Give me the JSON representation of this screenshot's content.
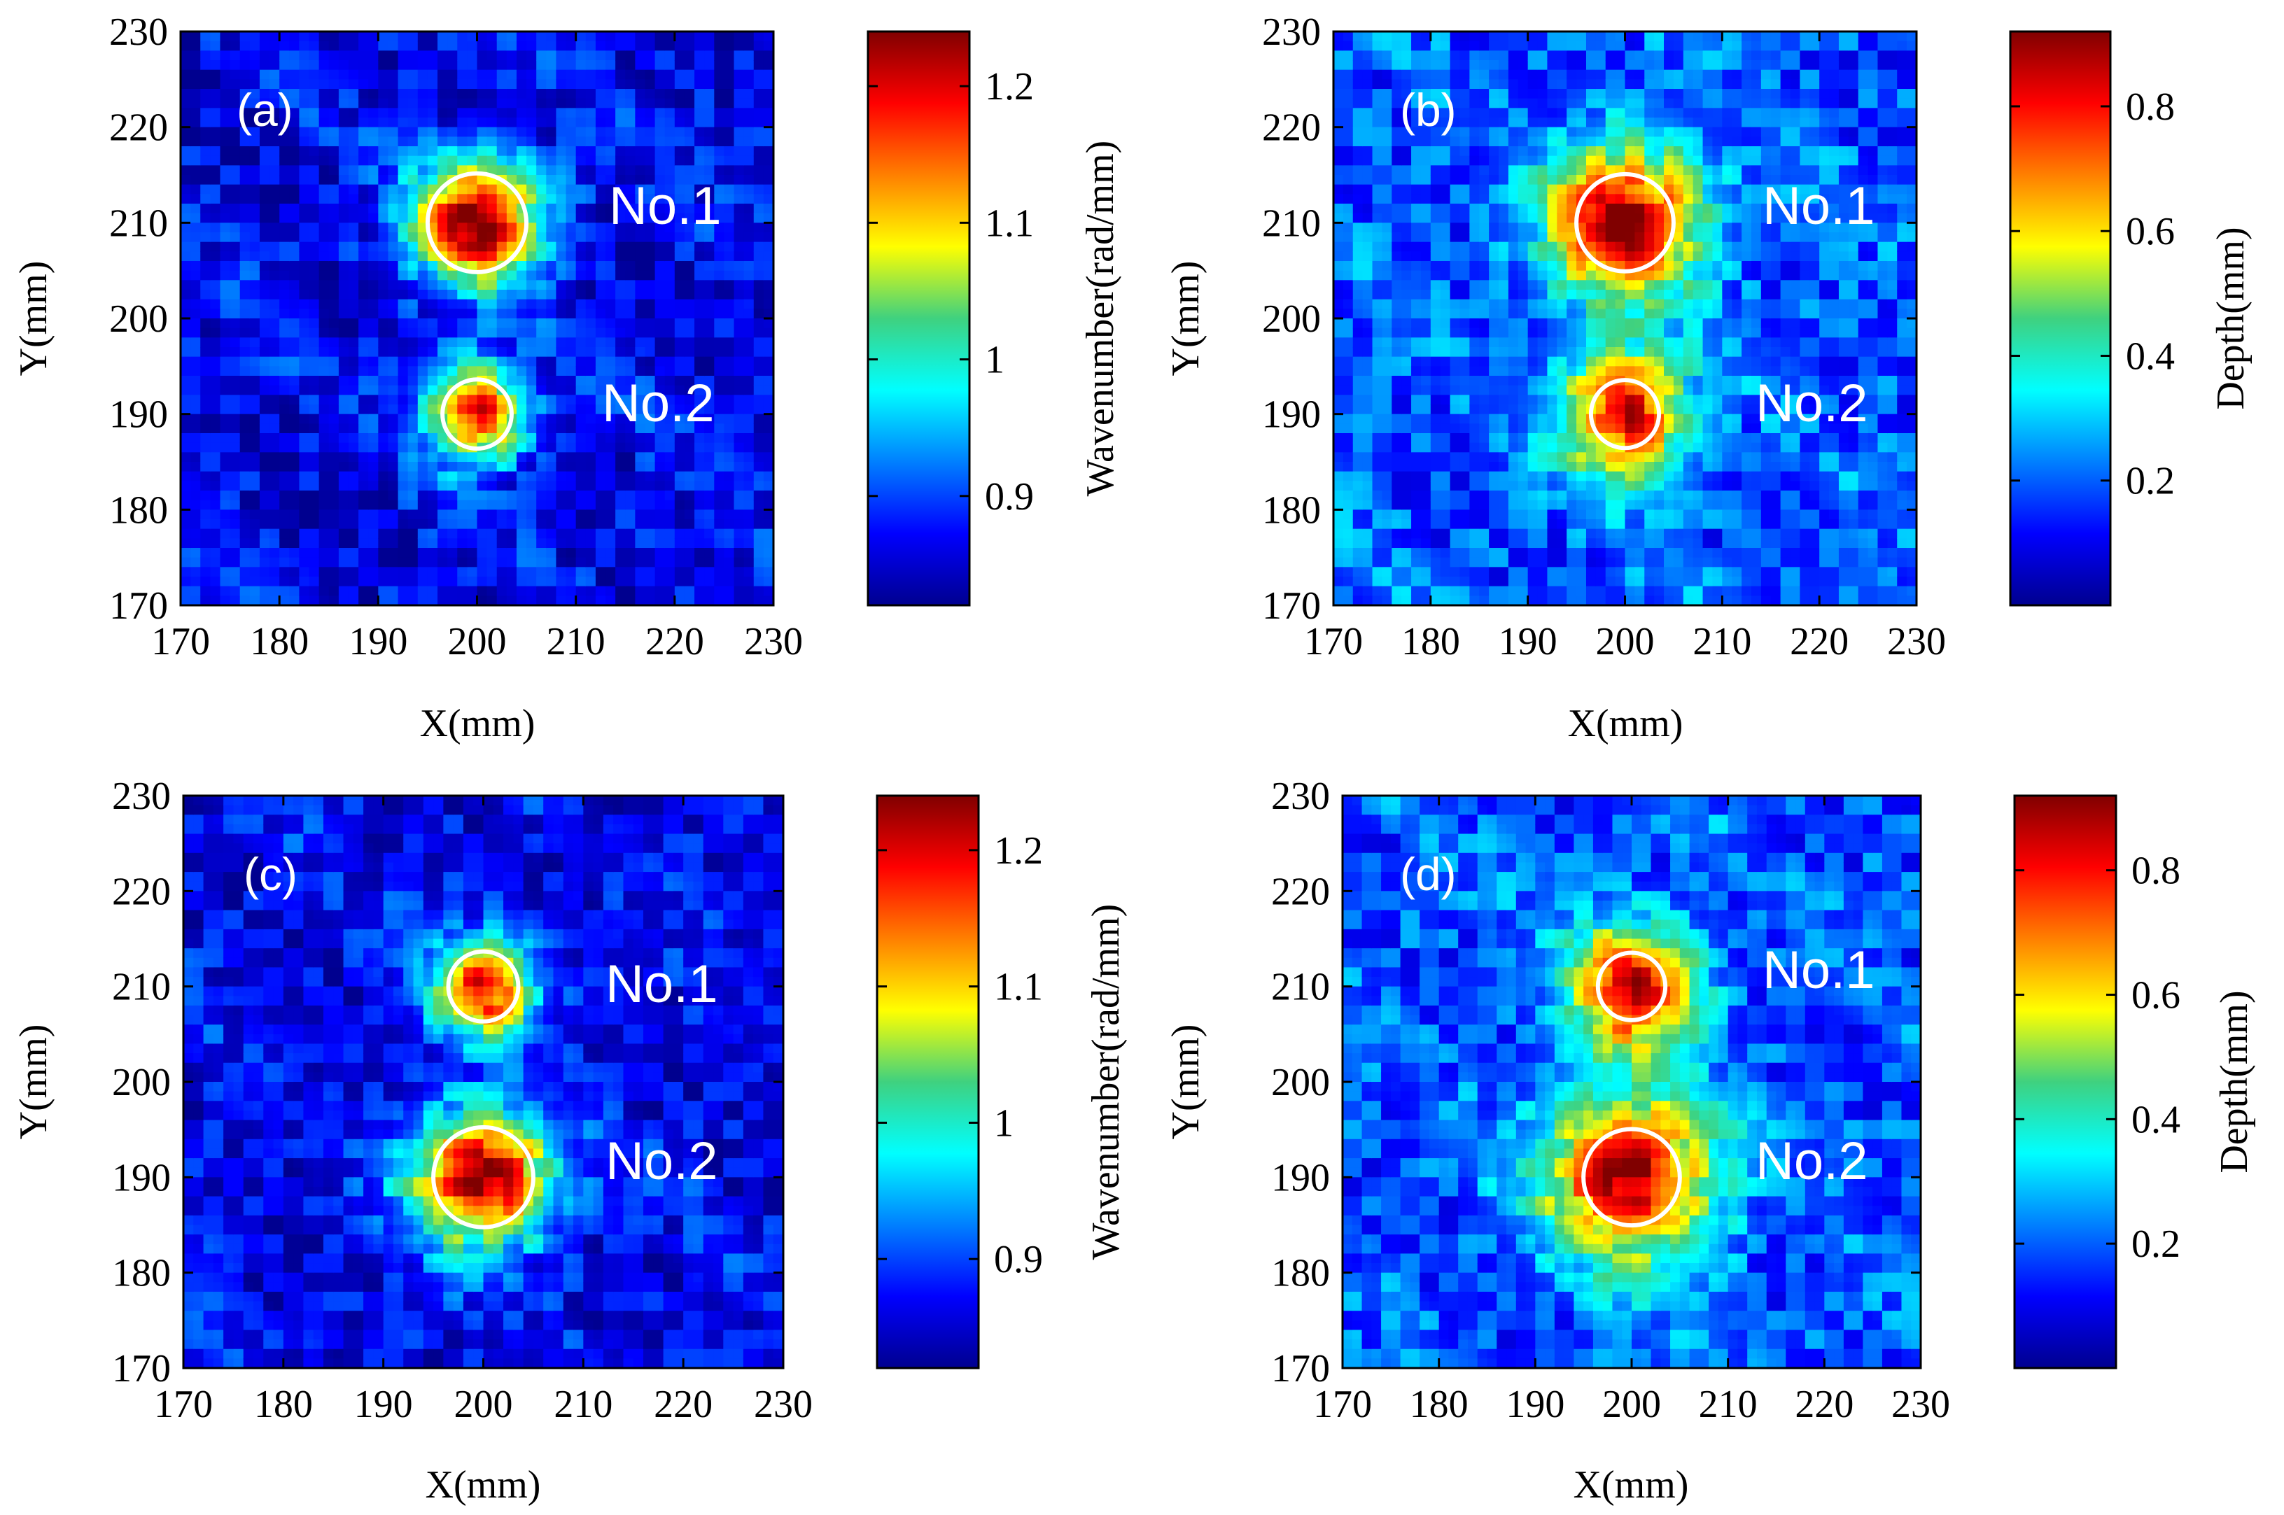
{
  "figure": {
    "panels": [
      {
        "label": "(a)",
        "colorbar": {
          "label": "Wavenumber(rad/mm)",
          "ticks": [
            "1.2",
            "1.1",
            "1",
            "0.9"
          ]
        },
        "defects": [
          {
            "name": "No.1",
            "x": 200,
            "y": 210,
            "radius": 5
          },
          {
            "name": "No.2",
            "x": 200,
            "y": 190,
            "radius": 3.5
          }
        ]
      },
      {
        "label": "(b)",
        "colorbar": {
          "label": "Depth(mm)",
          "ticks": [
            "0.8",
            "0.6",
            "0.4",
            "0.2"
          ]
        },
        "defects": [
          {
            "name": "No.1",
            "x": 200,
            "y": 210,
            "radius": 5
          },
          {
            "name": "No.2",
            "x": 200,
            "y": 190,
            "radius": 3.5
          }
        ]
      },
      {
        "label": "(c)",
        "colorbar": {
          "label": "Wavenumber(rad/mm)",
          "ticks": [
            "1.2",
            "1.1",
            "1",
            "0.9"
          ]
        },
        "defects": [
          {
            "name": "No.1",
            "x": 200,
            "y": 210,
            "radius": 3.5
          },
          {
            "name": "No.2",
            "x": 200,
            "y": 190,
            "radius": 5
          }
        ]
      },
      {
        "label": "(d)",
        "colorbar": {
          "label": "Depth(mm)",
          "ticks": [
            "0.8",
            "0.6",
            "0.4",
            "0.2"
          ]
        },
        "defects": [
          {
            "name": "No.1",
            "x": 200,
            "y": 210,
            "radius": 3.5
          },
          {
            "name": "No.2",
            "x": 200,
            "y": 190,
            "radius": 5
          }
        ]
      }
    ]
  },
  "chart_data": [
    {
      "type": "heatmap",
      "panel": "(a)",
      "xlabel": "X(mm)",
      "ylabel": "Y(mm)",
      "xlim": [
        170,
        230
      ],
      "ylim": [
        170,
        230
      ],
      "xticks": [
        170,
        180,
        190,
        200,
        210,
        220,
        230
      ],
      "yticks": [
        170,
        180,
        190,
        200,
        210,
        220,
        230
      ],
      "colorbar_label": "Wavenumber(rad/mm)",
      "colorbar_range": [
        0.82,
        1.24
      ],
      "colorbar_ticks": [
        0.9,
        1,
        1.1,
        1.2
      ],
      "peaks": [
        {
          "name": "No.1",
          "x": 200,
          "y": 210,
          "value": 1.23,
          "spread": 4.6
        },
        {
          "name": "No.2",
          "x": 200,
          "y": 190,
          "value": 1.18,
          "spread": 3.6
        }
      ],
      "background": 0.86,
      "annotations": [
        "(a)",
        "No.1",
        "No.2"
      ]
    },
    {
      "type": "heatmap",
      "panel": "(b)",
      "xlabel": "X(mm)",
      "ylabel": "Y(mm)",
      "xlim": [
        170,
        230
      ],
      "ylim": [
        170,
        230
      ],
      "xticks": [
        170,
        180,
        190,
        200,
        210,
        220,
        230
      ],
      "yticks": [
        170,
        180,
        190,
        200,
        210,
        220,
        230
      ],
      "colorbar_label": "Depth(mm)",
      "colorbar_range": [
        0,
        0.92
      ],
      "colorbar_ticks": [
        0.2,
        0.4,
        0.6,
        0.8
      ],
      "peaks": [
        {
          "name": "No.1",
          "x": 200,
          "y": 210,
          "value": 0.9,
          "spread": 5.6
        },
        {
          "name": "No.2",
          "x": 200,
          "y": 190,
          "value": 0.82,
          "spread": 4.6
        }
      ],
      "background": 0.18,
      "annotations": [
        "(b)",
        "No.1",
        "No.2"
      ]
    },
    {
      "type": "heatmap",
      "panel": "(c)",
      "xlabel": "X(mm)",
      "ylabel": "Y(mm)",
      "xlim": [
        170,
        230
      ],
      "ylim": [
        170,
        230
      ],
      "xticks": [
        170,
        180,
        190,
        200,
        210,
        220,
        230
      ],
      "yticks": [
        170,
        180,
        190,
        200,
        210,
        220,
        230
      ],
      "colorbar_label": "Wavenumber(rad/mm)",
      "colorbar_range": [
        0.82,
        1.24
      ],
      "colorbar_ticks": [
        0.9,
        1,
        1.1,
        1.2
      ],
      "peaks": [
        {
          "name": "No.1",
          "x": 200,
          "y": 210,
          "value": 1.19,
          "spread": 3.6
        },
        {
          "name": "No.2",
          "x": 200,
          "y": 190,
          "value": 1.23,
          "spread": 5.0
        }
      ],
      "background": 0.86,
      "annotations": [
        "(c)",
        "No.1",
        "No.2"
      ]
    },
    {
      "type": "heatmap",
      "panel": "(d)",
      "xlabel": "X(mm)",
      "ylabel": "Y(mm)",
      "xlim": [
        170,
        230
      ],
      "ylim": [
        170,
        230
      ],
      "xticks": [
        170,
        180,
        190,
        200,
        210,
        220,
        230
      ],
      "yticks": [
        170,
        180,
        190,
        200,
        210,
        220,
        230
      ],
      "colorbar_label": "Depth(mm)",
      "colorbar_range": [
        0,
        0.92
      ],
      "colorbar_ticks": [
        0.2,
        0.4,
        0.6,
        0.8
      ],
      "peaks": [
        {
          "name": "No.1",
          "x": 200,
          "y": 210,
          "value": 0.84,
          "spread": 4.6
        },
        {
          "name": "No.2",
          "x": 200,
          "y": 190,
          "value": 0.9,
          "spread": 6.0
        }
      ],
      "background": 0.18,
      "annotations": [
        "(d)",
        "No.1",
        "No.2"
      ]
    }
  ]
}
